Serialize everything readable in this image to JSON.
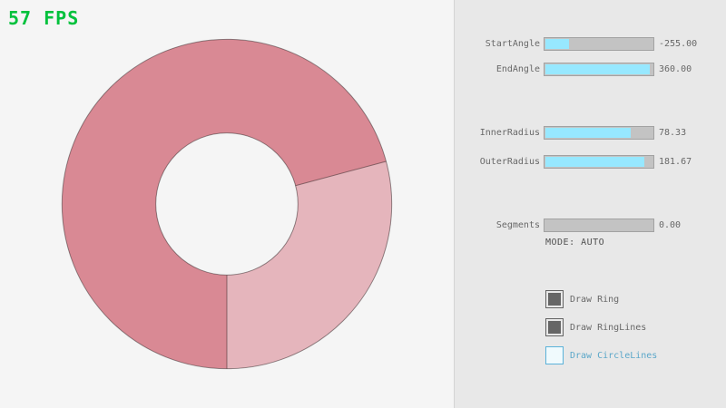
{
  "window": {
    "bg_canvas": "#f5f5f5",
    "bg_panel": "#e8e8e8",
    "divider": "#d4d4d4"
  },
  "fps": {
    "text": "57 FPS",
    "color": "#00c13c"
  },
  "ring": {
    "start_angle": -255.0,
    "end_angle": 360.0,
    "inner_radius": 78.33,
    "outer_radius": 181.67,
    "segments": 0.0,
    "mode": "AUTO",
    "color_single_pass": "#e5b5bc",
    "color_double_pass": "#d98994",
    "line_color": "rgba(0,0,0,0.4)"
  },
  "panel": {
    "sliders": [
      {
        "label": "StartAngle",
        "value": "-255.00",
        "fill_pct": 22
      },
      {
        "label": "EndAngle",
        "value": "360.00",
        "fill_pct": 96
      },
      {
        "label": "InnerRadius",
        "value": "78.33",
        "fill_pct": 78
      },
      {
        "label": "OuterRadius",
        "value": "181.67",
        "fill_pct": 91
      },
      {
        "label": "Segments",
        "value": "0.00",
        "fill_pct": 0
      }
    ],
    "mode_text": "MODE: AUTO",
    "checkboxes": [
      {
        "label": "Draw Ring",
        "checked": true
      },
      {
        "label": "Draw RingLines",
        "checked": true
      },
      {
        "label": "Draw CircleLines",
        "checked": false
      }
    ],
    "colors": {
      "slider_fill": "#97e8ff",
      "slider_track": "#c3c3c3",
      "text": "#686868",
      "checkbox_checked": "#666666",
      "accent_blue": "#5ba7c9"
    }
  }
}
